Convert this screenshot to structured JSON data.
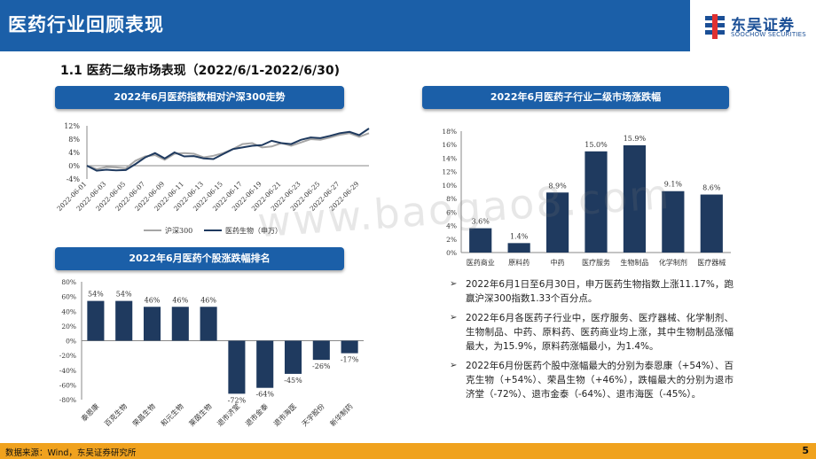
{
  "header": {
    "title": "医药行业回顾表现"
  },
  "logo": {
    "cn": "东吴证券",
    "en": "SOOCHOW SECURITIES"
  },
  "subtitle": "1.1 医药二级市场表现（2022/6/1-2022/6/30)",
  "panels": {
    "index_title": "2022年6月医药指数相对沪深300走势",
    "subsector_title": "2022年6月医药子行业二级市场涨跌幅",
    "stock_title": "2022年6月医药个股涨跌幅排名"
  },
  "watermark": "www.baogao8.com",
  "bullets": [
    "2022年6月1日至6月30日，申万医药生物指数上涨11.17%，跑赢沪深300指数1.33个百分点。",
    "2022年6月各医药子行业中，医疗服务、医疗器械、化学制剂、生物制品、中药、原料药、医药商业均上涨，其中生物制品涨幅最大，为15.9%，原料药涨幅最小，为1.4%。",
    "2022年6月份医药个股中涨幅最大的分别为泰恩康（+54%）、百克生物（+54%）、荣昌生物（+46%），跌幅最大的分别为退市济堂（-72%）、退市金泰（-64%）、退市海医（-45%）。"
  ],
  "footer": {
    "source": "数据来源：Wind，东吴证券研究所",
    "page": "5"
  },
  "colors": {
    "brand": "#1b5fa8",
    "bar": "#1f3a5f",
    "line_hs300": "#a6a6a6",
    "line_med": "#1f3a5f",
    "footer": "#f0a21e"
  },
  "chart_data": [
    {
      "type": "line",
      "title": "2022年6月医药指数相对沪深300走势",
      "x": [
        "2022-06-01",
        "2022-06-02",
        "2022-06-03",
        "2022-06-04",
        "2022-06-05",
        "2022-06-06",
        "2022-06-07",
        "2022-06-08",
        "2022-06-09",
        "2022-06-10",
        "2022-06-11",
        "2022-06-12",
        "2022-06-13",
        "2022-06-14",
        "2022-06-15",
        "2022-06-16",
        "2022-06-17",
        "2022-06-18",
        "2022-06-19",
        "2022-06-20",
        "2022-06-21",
        "2022-06-22",
        "2022-06-23",
        "2022-06-24",
        "2022-06-25",
        "2022-06-26",
        "2022-06-27",
        "2022-06-28",
        "2022-06-29",
        "2022-06-30"
      ],
      "tick_labels": [
        "2022-06-01",
        "2022-06-03",
        "2022-06-05",
        "2022-06-07",
        "2022-06-09",
        "2022-06-11",
        "2022-06-13",
        "2022-06-15",
        "2022-06-17",
        "2022-06-19",
        "2022-06-21",
        "2022-06-23",
        "2022-06-25",
        "2022-06-27",
        "2022-06-29"
      ],
      "yticks": [
        "12%",
        "8%",
        "4%",
        "0%",
        "-4%"
      ],
      "ylim": [
        -4,
        12
      ],
      "series": [
        {
          "name": "沪深300",
          "values": [
            0.0,
            -1.0,
            -0.4,
            -0.5,
            -0.8,
            1.5,
            2.8,
            3.2,
            1.8,
            3.6,
            3.8,
            3.6,
            2.5,
            3.0,
            3.8,
            5.0,
            6.5,
            6.8,
            5.5,
            5.8,
            6.8,
            6.0,
            7.0,
            8.0,
            7.8,
            8.5,
            9.3,
            9.8,
            8.7,
            9.8
          ]
        },
        {
          "name": "医药生物（申万）",
          "values": [
            0.0,
            -1.5,
            -1.2,
            -1.4,
            -1.3,
            0.5,
            2.5,
            3.8,
            2.2,
            4.0,
            2.8,
            2.9,
            2.2,
            2.0,
            3.5,
            5.0,
            5.5,
            6.0,
            6.2,
            7.5,
            6.8,
            6.5,
            7.8,
            8.5,
            8.3,
            9.0,
            9.8,
            10.2,
            9.2,
            11.2
          ]
        }
      ]
    },
    {
      "type": "bar",
      "title": "2022年6月医药子行业二级市场涨跌幅",
      "categories": [
        "医药商业",
        "原料药",
        "中药",
        "医疗服务",
        "生物制品",
        "化学制剂",
        "医疗器械"
      ],
      "values": [
        3.6,
        1.4,
        8.9,
        15.0,
        15.9,
        9.1,
        8.6
      ],
      "data_labels": [
        "3.6%",
        "1.4%",
        "8.9%",
        "15.0%",
        "15.9%",
        "9.1%",
        "8.6%"
      ],
      "yticks": [
        "18%",
        "16%",
        "14%",
        "12%",
        "10%",
        "8%",
        "6%",
        "4%",
        "2%",
        "0%"
      ],
      "ylim": [
        0,
        18
      ]
    },
    {
      "type": "bar",
      "title": "2022年6月医药个股涨跌幅排名",
      "categories": [
        "泰恩康",
        "百克生物",
        "荣昌生物",
        "和元生物",
        "莱茵生物",
        "退市济堂",
        "退市金泰",
        "退市海医",
        "天宇股份",
        "新华制药"
      ],
      "values": [
        54,
        54,
        46,
        46,
        46,
        -72,
        -64,
        -45,
        -26,
        -17
      ],
      "data_labels": [
        "54%",
        "54%",
        "46%",
        "46%",
        "46%",
        "-72%",
        "-64%",
        "-45%",
        "-26%",
        "-17%"
      ],
      "yticks": [
        "80%",
        "60%",
        "40%",
        "20%",
        "0%",
        "-20%",
        "-40%",
        "-60%",
        "-80%"
      ],
      "ylim": [
        -80,
        80
      ]
    }
  ]
}
